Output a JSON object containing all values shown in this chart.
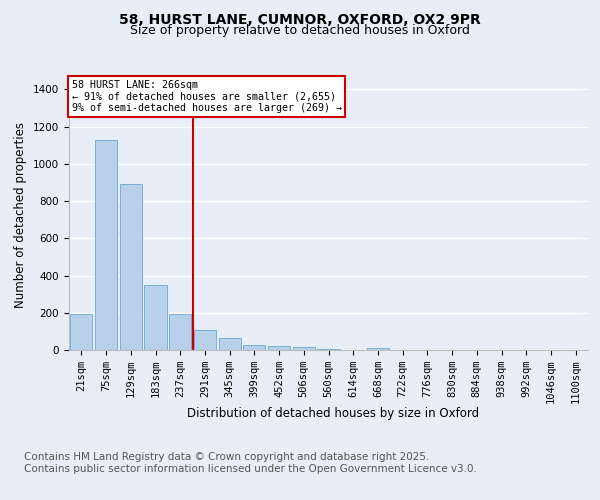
{
  "title_line1": "58, HURST LANE, CUMNOR, OXFORD, OX2 9PR",
  "title_line2": "Size of property relative to detached houses in Oxford",
  "xlabel": "Distribution of detached houses by size in Oxford",
  "ylabel": "Number of detached properties",
  "categories": [
    "21sqm",
    "75sqm",
    "129sqm",
    "183sqm",
    "237sqm",
    "291sqm",
    "345sqm",
    "399sqm",
    "452sqm",
    "506sqm",
    "560sqm",
    "614sqm",
    "668sqm",
    "722sqm",
    "776sqm",
    "830sqm",
    "884sqm",
    "938sqm",
    "992sqm",
    "1046sqm",
    "1100sqm"
  ],
  "values": [
    195,
    1130,
    890,
    350,
    195,
    105,
    65,
    25,
    22,
    15,
    8,
    0,
    10,
    0,
    0,
    0,
    0,
    0,
    0,
    0,
    0
  ],
  "bar_color": "#b8d0ea",
  "bar_edge_color": "#7aafd4",
  "background_color": "#e8eef8",
  "grid_color": "#ffffff",
  "vline_color": "#cc0000",
  "vline_x": 4.5,
  "annotation_text": "58 HURST LANE: 266sqm\n← 91% of detached houses are smaller (2,655)\n9% of semi-detached houses are larger (269) →",
  "annotation_box_edgecolor": "#cc0000",
  "ylim": [
    0,
    1450
  ],
  "yticks": [
    0,
    200,
    400,
    600,
    800,
    1000,
    1200,
    1400
  ],
  "footer_line1": "Contains HM Land Registry data © Crown copyright and database right 2025.",
  "footer_line2": "Contains public sector information licensed under the Open Government Licence v3.0.",
  "footer_fontsize": 7.5,
  "title_fontsize": 10,
  "subtitle_fontsize": 9,
  "axis_label_fontsize": 8.5,
  "tick_fontsize": 7.5
}
